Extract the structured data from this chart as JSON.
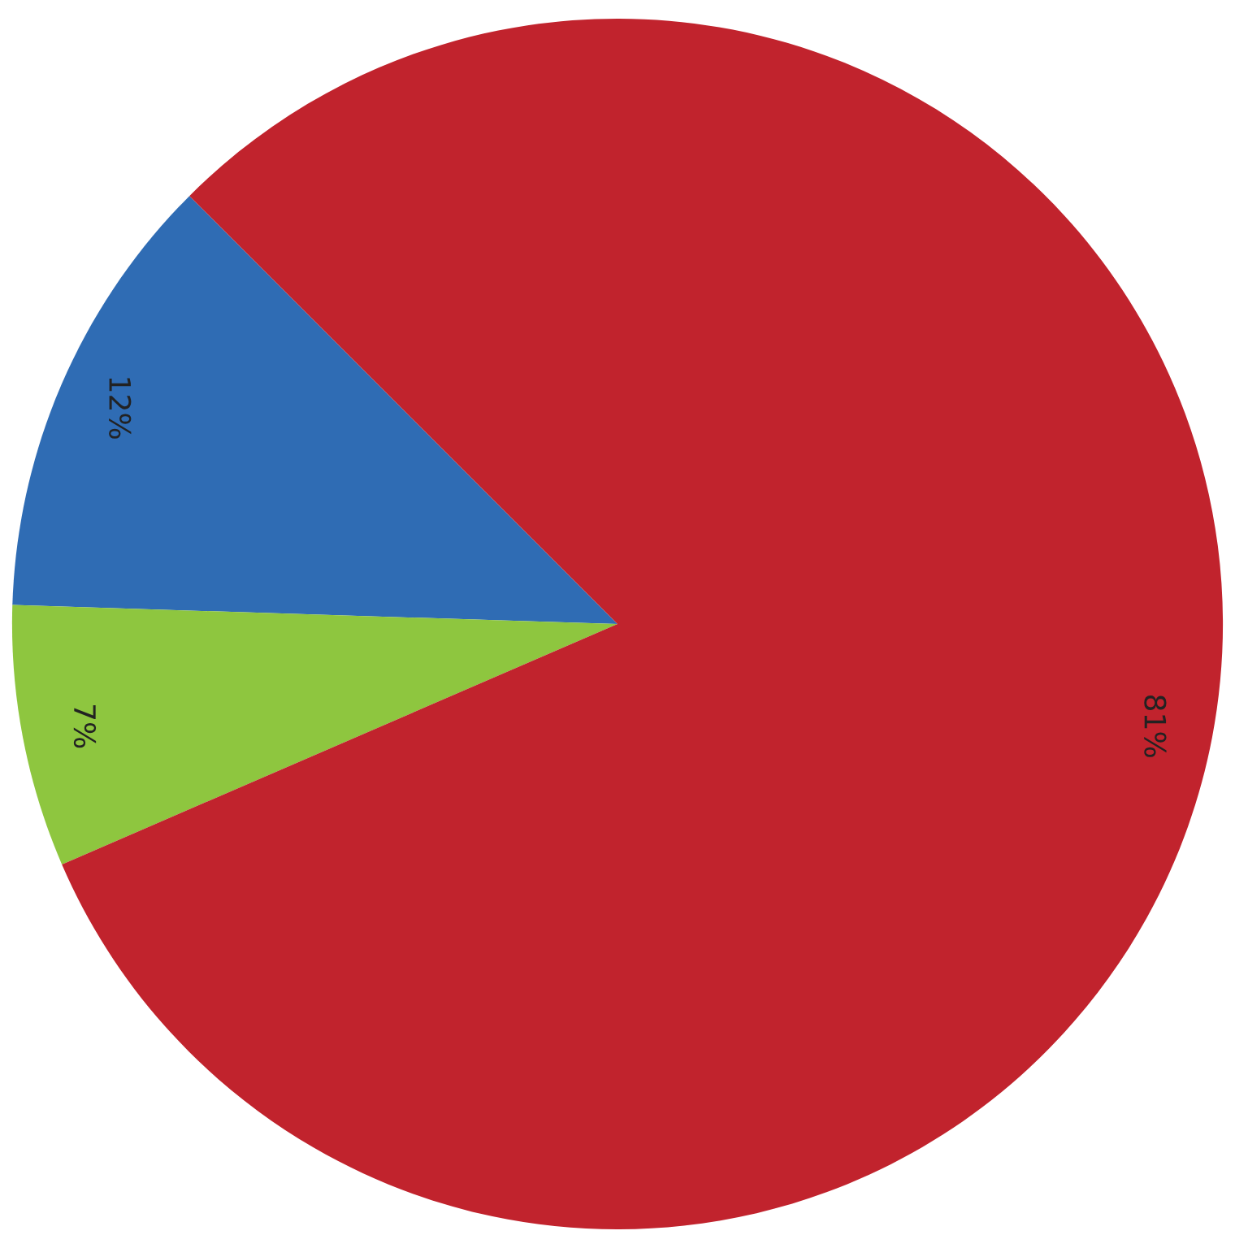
{
  "chart_data": {
    "type": "pie",
    "categories": [
      null,
      null,
      null
    ],
    "values": [
      12,
      7,
      81
    ],
    "colors": [
      "#2f6cb4",
      "#8ec63f",
      "#c1232d"
    ],
    "value_labels": [
      "12%",
      "7%",
      "81%"
    ]
  }
}
